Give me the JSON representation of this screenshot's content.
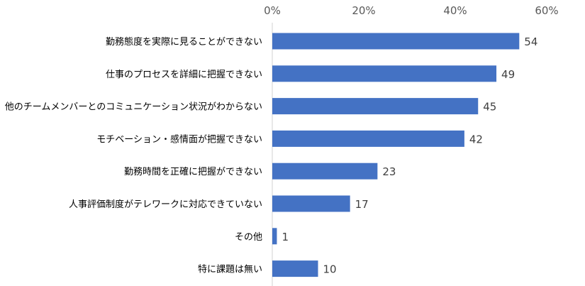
{
  "chart_data": {
    "type": "bar",
    "orientation": "horizontal",
    "categories": [
      "勤務態度を実際に見ることができない",
      "仕事のプロセスを詳細に把握できない",
      "他のチームメンバーとのコミュニケーション状況がわからない",
      "モチベーション・感情面が把握できない",
      "勤務時間を正確に把握ができない",
      "人事評価制度がテレワークに対応できていない",
      "その他",
      "特に課題は無い"
    ],
    "values": [
      54,
      49,
      45,
      42,
      23,
      17,
      1,
      10
    ],
    "value_labels": [
      "54",
      "49",
      "45",
      "42",
      "23",
      "17",
      "1",
      "10"
    ],
    "xlim": [
      0,
      60
    ],
    "x_ticks": [
      "0%",
      "20%",
      "40%",
      "60%"
    ],
    "x_axis_position": "top",
    "grid": false,
    "legend": "none",
    "bar_color": "#4472c4"
  }
}
